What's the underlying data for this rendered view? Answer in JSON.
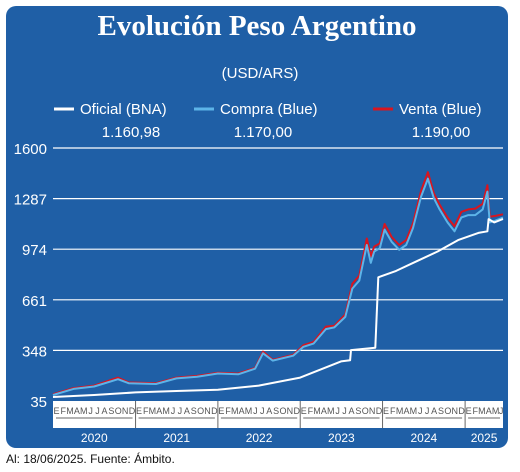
{
  "title": "Evolución Peso Argentino",
  "source": "Al: 18/06/2025. Fuente: Ámbito.",
  "colors": {
    "background": "#1f5fa6",
    "oficial": "#ffffff",
    "compra": "#5db4e8",
    "venta": "#d8151f",
    "grid": "#ffffff"
  },
  "chart_data": {
    "type": "line",
    "subtitle": "(USD/ARS)",
    "legend_placement": "top",
    "ylim": [
      35,
      1600
    ],
    "y_ticks": [
      "35",
      "348",
      "661",
      "974",
      "1287",
      "1600"
    ],
    "month_labels": [
      "E",
      "F",
      "M",
      "A",
      "M",
      "J",
      "J",
      "A",
      "S",
      "O",
      "N",
      "D"
    ],
    "year_labels": [
      "2020",
      "2021",
      "2022",
      "2023",
      "2024",
      "2025"
    ],
    "x_range": [
      "2020-01-01",
      "2025-06-18"
    ],
    "x_end": "2025-06-18",
    "grid": true,
    "series": [
      {
        "name": "Oficial (BNA)",
        "last_value": "1.160,98",
        "points": [
          [
            "2020-01-01",
            60
          ],
          [
            "2020-07-01",
            72
          ],
          [
            "2021-01-01",
            88
          ],
          [
            "2021-07-01",
            97
          ],
          [
            "2022-01-01",
            105
          ],
          [
            "2022-07-01",
            130
          ],
          [
            "2023-01-01",
            180
          ],
          [
            "2023-07-01",
            280
          ],
          [
            "2023-08-10",
            287
          ],
          [
            "2023-08-14",
            350
          ],
          [
            "2023-11-30",
            365
          ],
          [
            "2023-12-13",
            800
          ],
          [
            "2024-03-01",
            840
          ],
          [
            "2024-06-01",
            900
          ],
          [
            "2024-09-01",
            960
          ],
          [
            "2024-12-01",
            1030
          ],
          [
            "2025-03-01",
            1075
          ],
          [
            "2025-04-10",
            1085
          ],
          [
            "2025-04-15",
            1160
          ],
          [
            "2025-05-10",
            1140
          ],
          [
            "2025-06-18",
            1161
          ]
        ]
      },
      {
        "name": "Compra (Blue)",
        "last_value": "1.170,00",
        "points": [
          [
            "2020-01-01",
            72
          ],
          [
            "2020-04-01",
            110
          ],
          [
            "2020-07-01",
            125
          ],
          [
            "2020-10-15",
            170
          ],
          [
            "2020-12-01",
            145
          ],
          [
            "2021-04-01",
            140
          ],
          [
            "2021-07-01",
            175
          ],
          [
            "2021-10-01",
            185
          ],
          [
            "2022-01-01",
            205
          ],
          [
            "2022-04-01",
            200
          ],
          [
            "2022-06-15",
            235
          ],
          [
            "2022-07-20",
            330
          ],
          [
            "2022-09-01",
            285
          ],
          [
            "2022-12-01",
            315
          ],
          [
            "2023-01-15",
            370
          ],
          [
            "2023-03-01",
            390
          ],
          [
            "2023-04-25",
            480
          ],
          [
            "2023-06-01",
            490
          ],
          [
            "2023-07-20",
            555
          ],
          [
            "2023-08-20",
            730
          ],
          [
            "2023-09-20",
            780
          ],
          [
            "2023-10-23",
            1000
          ],
          [
            "2023-11-10",
            890
          ],
          [
            "2023-11-25",
            960
          ],
          [
            "2023-12-20",
            980
          ],
          [
            "2024-01-10",
            1095
          ],
          [
            "2024-02-10",
            1020
          ],
          [
            "2024-03-15",
            970
          ],
          [
            "2024-04-15",
            1000
          ],
          [
            "2024-05-15",
            1105
          ],
          [
            "2024-06-20",
            1300
          ],
          [
            "2024-07-20",
            1410
          ],
          [
            "2024-08-15",
            1290
          ],
          [
            "2024-09-10",
            1220
          ],
          [
            "2024-10-15",
            1140
          ],
          [
            "2024-11-15",
            1085
          ],
          [
            "2024-12-15",
            1170
          ],
          [
            "2025-01-15",
            1185
          ],
          [
            "2025-02-15",
            1185
          ],
          [
            "2025-03-20",
            1220
          ],
          [
            "2025-04-10",
            1330
          ],
          [
            "2025-04-20",
            1140
          ],
          [
            "2025-05-15",
            1150
          ],
          [
            "2025-06-18",
            1170
          ]
        ]
      },
      {
        "name": "Venta (Blue)",
        "last_value": "1.190,00",
        "points": [
          [
            "2020-01-01",
            77
          ],
          [
            "2020-04-01",
            115
          ],
          [
            "2020-07-01",
            130
          ],
          [
            "2020-10-15",
            180
          ],
          [
            "2020-12-01",
            150
          ],
          [
            "2021-04-01",
            145
          ],
          [
            "2021-07-01",
            180
          ],
          [
            "2021-10-01",
            190
          ],
          [
            "2022-01-01",
            210
          ],
          [
            "2022-04-01",
            205
          ],
          [
            "2022-06-15",
            240
          ],
          [
            "2022-07-20",
            340
          ],
          [
            "2022-09-01",
            290
          ],
          [
            "2022-12-01",
            320
          ],
          [
            "2023-01-15",
            380
          ],
          [
            "2023-03-01",
            400
          ],
          [
            "2023-04-25",
            495
          ],
          [
            "2023-06-01",
            500
          ],
          [
            "2023-07-20",
            570
          ],
          [
            "2023-08-20",
            760
          ],
          [
            "2023-09-20",
            810
          ],
          [
            "2023-10-23",
            1040
          ],
          [
            "2023-11-10",
            930
          ],
          [
            "2023-11-25",
            990
          ],
          [
            "2023-12-20",
            1010
          ],
          [
            "2024-01-10",
            1130
          ],
          [
            "2024-02-10",
            1050
          ],
          [
            "2024-03-15",
            1000
          ],
          [
            "2024-04-15",
            1030
          ],
          [
            "2024-05-15",
            1135
          ],
          [
            "2024-06-20",
            1335
          ],
          [
            "2024-07-20",
            1450
          ],
          [
            "2024-08-15",
            1320
          ],
          [
            "2024-09-10",
            1250
          ],
          [
            "2024-10-15",
            1170
          ],
          [
            "2024-11-15",
            1115
          ],
          [
            "2024-12-15",
            1205
          ],
          [
            "2025-01-15",
            1220
          ],
          [
            "2025-02-15",
            1225
          ],
          [
            "2025-03-20",
            1255
          ],
          [
            "2025-04-10",
            1370
          ],
          [
            "2025-04-20",
            1175
          ],
          [
            "2025-05-15",
            1180
          ],
          [
            "2025-06-18",
            1190
          ]
        ]
      }
    ]
  }
}
